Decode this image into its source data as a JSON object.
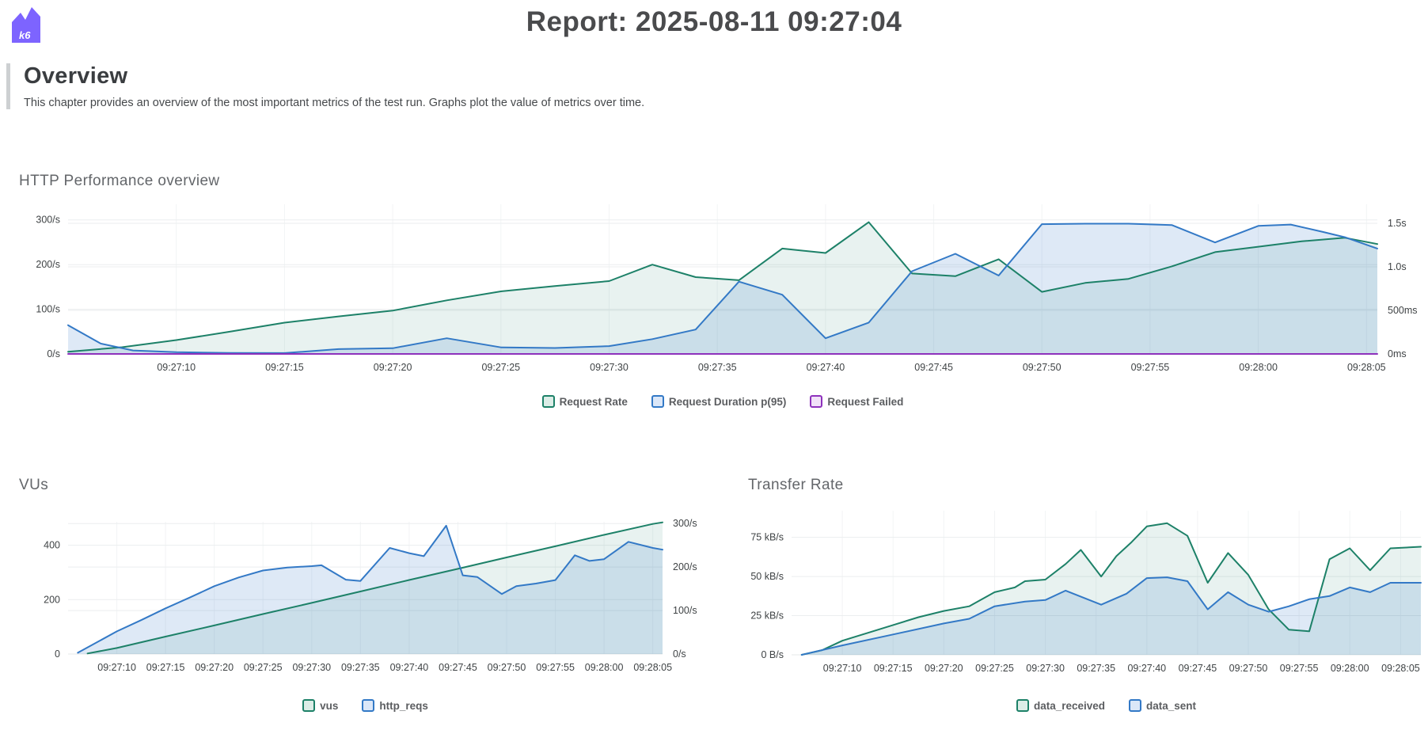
{
  "header": {
    "title": "Report: 2025-08-11 09:27:04",
    "logo_text": "k6",
    "logo_color": "#7d64ff"
  },
  "section": {
    "title": "Overview",
    "description": "This chapter provides an overview of the most important metrics of the test run. Graphs plot the value of metrics over time."
  },
  "chart_data": [
    {
      "id": "http-performance-overview",
      "type": "area",
      "title": "HTTP Performance overview",
      "x_unit": "seconds since 09:27:05",
      "x_domain": [
        0,
        60.5
      ],
      "grid": true,
      "legend_position": "bottom",
      "xticks": [
        {
          "t": 5,
          "label": "09:27:10"
        },
        {
          "t": 10,
          "label": "09:27:15"
        },
        {
          "t": 15,
          "label": "09:27:20"
        },
        {
          "t": 20,
          "label": "09:27:25"
        },
        {
          "t": 25,
          "label": "09:27:30"
        },
        {
          "t": 30,
          "label": "09:27:35"
        },
        {
          "t": 35,
          "label": "09:27:40"
        },
        {
          "t": 40,
          "label": "09:27:45"
        },
        {
          "t": 45,
          "label": "09:27:50"
        },
        {
          "t": 50,
          "label": "09:27:55"
        },
        {
          "t": 55,
          "label": "09:28:00"
        },
        {
          "t": 60,
          "label": "09:28:05"
        }
      ],
      "left_axis": {
        "max": 335,
        "unit": "requests/s",
        "ticks": [
          {
            "v": 0,
            "label": "0/s"
          },
          {
            "v": 100,
            "label": "100/s"
          },
          {
            "v": 200,
            "label": "200/s"
          },
          {
            "v": 300,
            "label": "300/s"
          }
        ]
      },
      "right_axis": {
        "max": 1718,
        "unit": "ms",
        "ticks": [
          {
            "v": 0,
            "label": "0ms"
          },
          {
            "v": 500,
            "label": "500ms"
          },
          {
            "v": 1000,
            "label": "1.0s"
          },
          {
            "v": 1500,
            "label": "1.5s"
          }
        ]
      },
      "series": [
        {
          "name": "Request Rate",
          "axis": "left",
          "color": "#1d8168",
          "fill": "rgba(29,129,104,0.10)",
          "swatch_bg": "#dcede7",
          "points": [
            [
              0,
              5
            ],
            [
              2.5,
              15
            ],
            [
              5,
              31
            ],
            [
              7.5,
              50
            ],
            [
              10,
              70
            ],
            [
              12.5,
              84
            ],
            [
              15,
              97
            ],
            [
              17.5,
              120
            ],
            [
              20,
              140
            ],
            [
              22.5,
              152
            ],
            [
              25,
              163
            ],
            [
              27,
              200
            ],
            [
              29,
              172
            ],
            [
              31,
              165
            ],
            [
              33,
              236
            ],
            [
              35,
              226
            ],
            [
              37,
              295
            ],
            [
              39,
              180
            ],
            [
              41,
              174
            ],
            [
              43,
              212
            ],
            [
              45,
              139
            ],
            [
              47,
              159
            ],
            [
              49,
              168
            ],
            [
              51,
              196
            ],
            [
              53,
              228
            ],
            [
              55,
              240
            ],
            [
              57,
              252
            ],
            [
              59,
              260
            ],
            [
              60.5,
              246
            ]
          ]
        },
        {
          "name": "Request Duration p(95)",
          "axis": "right",
          "color": "#3379c6",
          "fill": "rgba(51,121,198,0.16)",
          "swatch_bg": "#dbe7f8",
          "points": [
            [
              0,
              330
            ],
            [
              1.5,
              120
            ],
            [
              3,
              40
            ],
            [
              5,
              20
            ],
            [
              7.5,
              12
            ],
            [
              10,
              10
            ],
            [
              12.5,
              55
            ],
            [
              15,
              65
            ],
            [
              17.5,
              180
            ],
            [
              20,
              75
            ],
            [
              22.5,
              68
            ],
            [
              25,
              90
            ],
            [
              27,
              170
            ],
            [
              29,
              280
            ],
            [
              31,
              830
            ],
            [
              33,
              680
            ],
            [
              35,
              180
            ],
            [
              37,
              360
            ],
            [
              39,
              950
            ],
            [
              41,
              1150
            ],
            [
              43,
              900
            ],
            [
              45,
              1490
            ],
            [
              47,
              1495
            ],
            [
              49,
              1495
            ],
            [
              51,
              1480
            ],
            [
              53,
              1280
            ],
            [
              55,
              1470
            ],
            [
              56.5,
              1485
            ],
            [
              58,
              1400
            ],
            [
              59,
              1340
            ],
            [
              60.5,
              1210
            ]
          ]
        },
        {
          "name": "Request Failed",
          "axis": "left",
          "color": "#8e32bc",
          "fill": "none",
          "swatch_bg": "#f1e1f8",
          "points": [
            [
              0,
              0
            ],
            [
              60.5,
              0
            ]
          ]
        }
      ]
    },
    {
      "id": "vus",
      "type": "area",
      "title": "VUs",
      "x_unit": "seconds since 09:27:05",
      "x_domain": [
        0,
        61
      ],
      "grid": true,
      "legend_position": "bottom",
      "xticks": [
        {
          "t": 5,
          "label": "09:27:10"
        },
        {
          "t": 10,
          "label": "09:27:15"
        },
        {
          "t": 15,
          "label": "09:27:20"
        },
        {
          "t": 20,
          "label": "09:27:25"
        },
        {
          "t": 25,
          "label": "09:27:30"
        },
        {
          "t": 30,
          "label": "09:27:35"
        },
        {
          "t": 35,
          "label": "09:27:40"
        },
        {
          "t": 40,
          "label": "09:27:45"
        },
        {
          "t": 45,
          "label": "09:27:50"
        },
        {
          "t": 50,
          "label": "09:27:55"
        },
        {
          "t": 55,
          "label": "09:28:00"
        },
        {
          "t": 60,
          "label": "09:28:05"
        }
      ],
      "left_axis": {
        "max": 486,
        "unit": "VUs",
        "ticks": [
          {
            "v": 0,
            "label": "0"
          },
          {
            "v": 200,
            "label": "200"
          },
          {
            "v": 400,
            "label": "400"
          }
        ]
      },
      "right_axis": {
        "max": 304,
        "unit": "requests/s",
        "ticks": [
          {
            "v": 0,
            "label": "0/s"
          },
          {
            "v": 100,
            "label": "100/s"
          },
          {
            "v": 200,
            "label": "200/s"
          },
          {
            "v": 300,
            "label": "300/s"
          }
        ]
      },
      "series": [
        {
          "name": "vus",
          "axis": "left",
          "color": "#1d8168",
          "fill": "rgba(29,129,104,0.10)",
          "swatch_bg": "#dcede7",
          "points": [
            [
              2,
              2
            ],
            [
              5,
              22
            ],
            [
              10,
              64
            ],
            [
              15,
              105
            ],
            [
              20,
              147
            ],
            [
              25,
              188
            ],
            [
              30,
              230
            ],
            [
              35,
              272
            ],
            [
              40,
              313
            ],
            [
              45,
              355
            ],
            [
              50,
              396
            ],
            [
              55,
              438
            ],
            [
              60,
              478
            ],
            [
              61,
              484
            ]
          ]
        },
        {
          "name": "http_reqs",
          "axis": "right",
          "color": "#3379c6",
          "fill": "rgba(51,121,198,0.16)",
          "swatch_bg": "#dbe7f8",
          "points": [
            [
              1,
              3
            ],
            [
              5,
              52
            ],
            [
              7.5,
              78
            ],
            [
              10,
              105
            ],
            [
              12.5,
              130
            ],
            [
              15,
              156
            ],
            [
              17.5,
              176
            ],
            [
              20,
              192
            ],
            [
              22.5,
              199
            ],
            [
              25,
              202
            ],
            [
              26,
              204
            ],
            [
              28.5,
              171
            ],
            [
              30,
              168
            ],
            [
              33,
              244
            ],
            [
              35,
              232
            ],
            [
              36.5,
              225
            ],
            [
              38.8,
              295
            ],
            [
              40.5,
              181
            ],
            [
              42,
              177
            ],
            [
              44.5,
              138
            ],
            [
              46,
              156
            ],
            [
              48,
              162
            ],
            [
              50,
              170
            ],
            [
              52,
              227
            ],
            [
              53.5,
              214
            ],
            [
              55,
              218
            ],
            [
              57.5,
              258
            ],
            [
              60,
              244
            ],
            [
              61,
              240
            ]
          ]
        }
      ]
    },
    {
      "id": "transfer-rate",
      "type": "area",
      "title": "Transfer Rate",
      "x_unit": "seconds since 09:27:05",
      "x_domain": [
        0,
        62
      ],
      "grid": true,
      "legend_position": "bottom",
      "xticks": [
        {
          "t": 5,
          "label": "09:27:10"
        },
        {
          "t": 10,
          "label": "09:27:15"
        },
        {
          "t": 15,
          "label": "09:27:20"
        },
        {
          "t": 20,
          "label": "09:27:25"
        },
        {
          "t": 25,
          "label": "09:27:30"
        },
        {
          "t": 30,
          "label": "09:27:35"
        },
        {
          "t": 35,
          "label": "09:27:40"
        },
        {
          "t": 40,
          "label": "09:27:45"
        },
        {
          "t": 45,
          "label": "09:27:50"
        },
        {
          "t": 50,
          "label": "09:27:55"
        },
        {
          "t": 55,
          "label": "09:28:00"
        },
        {
          "t": 60,
          "label": "09:28:05"
        }
      ],
      "left_axis": {
        "max": 92,
        "unit": "kB/s",
        "ticks": [
          {
            "v": 0,
            "label": "0 B/s"
          },
          {
            "v": 25,
            "label": "25 kB/s"
          },
          {
            "v": 50,
            "label": "50 kB/s"
          },
          {
            "v": 75,
            "label": "75 kB/s"
          }
        ]
      },
      "series": [
        {
          "name": "data_received",
          "axis": "left",
          "color": "#1d8168",
          "fill": "rgba(29,129,104,0.10)",
          "swatch_bg": "#dcede7",
          "points": [
            [
              1,
              0
            ],
            [
              3,
              3
            ],
            [
              5,
              9
            ],
            [
              7.5,
              14
            ],
            [
              10,
              19
            ],
            [
              12.5,
              24
            ],
            [
              15,
              28
            ],
            [
              17.5,
              31
            ],
            [
              20,
              40
            ],
            [
              22,
              43
            ],
            [
              23,
              47
            ],
            [
              25,
              48
            ],
            [
              27,
              58
            ],
            [
              28.5,
              67
            ],
            [
              30.5,
              50
            ],
            [
              32,
              63
            ],
            [
              33.5,
              72
            ],
            [
              35,
              82
            ],
            [
              37,
              84
            ],
            [
              39,
              76
            ],
            [
              41,
              46
            ],
            [
              43,
              65
            ],
            [
              45,
              51
            ],
            [
              47,
              29
            ],
            [
              49,
              16
            ],
            [
              51,
              15
            ],
            [
              53,
              61
            ],
            [
              55,
              68
            ],
            [
              57,
              54
            ],
            [
              59,
              68
            ],
            [
              62,
              69
            ]
          ]
        },
        {
          "name": "data_sent",
          "axis": "left",
          "color": "#3379c6",
          "fill": "rgba(51,121,198,0.16)",
          "swatch_bg": "#dbe7f8",
          "points": [
            [
              1,
              0
            ],
            [
              5,
              6
            ],
            [
              10,
              13
            ],
            [
              15,
              20
            ],
            [
              17.5,
              23
            ],
            [
              20,
              31
            ],
            [
              23,
              34
            ],
            [
              25,
              35
            ],
            [
              27,
              41
            ],
            [
              30.5,
              32
            ],
            [
              33,
              39
            ],
            [
              35,
              49
            ],
            [
              37,
              49.5
            ],
            [
              39,
              47
            ],
            [
              41,
              29
            ],
            [
              43,
              40
            ],
            [
              45,
              32
            ],
            [
              47,
              27.5
            ],
            [
              49,
              31
            ],
            [
              51,
              35.5
            ],
            [
              53,
              37.5
            ],
            [
              55,
              43
            ],
            [
              57,
              40
            ],
            [
              59,
              46
            ],
            [
              62,
              46
            ]
          ]
        }
      ]
    }
  ]
}
